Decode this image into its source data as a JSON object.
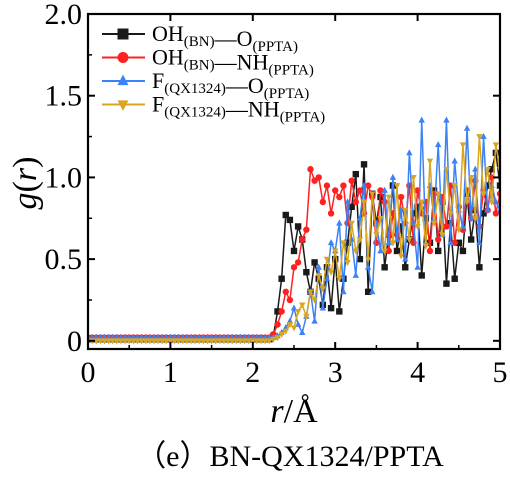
{
  "chart_data": {
    "type": "line",
    "title": "",
    "caption": "（e）BN-QX1324/PPTA",
    "xlabel": {
      "r": "r",
      "slash": "/",
      "unit": "Å"
    },
    "ylabel": {
      "g": "g",
      "open": "(",
      "r": "r",
      "close": ")"
    },
    "xlim": [
      0,
      5
    ],
    "ylim": [
      -0.05,
      2.0
    ],
    "x_ticks": [
      0,
      1,
      2,
      3,
      4,
      5
    ],
    "x_tick_labels": [
      "0",
      "1",
      "2",
      "3",
      "4",
      "5"
    ],
    "y_ticks": [
      0,
      0.5,
      1.0,
      1.5,
      2.0
    ],
    "y_tick_labels": [
      "0",
      "0.5",
      "1.0",
      "1.5",
      "2.0"
    ],
    "grid": false,
    "legend_position": "top-left",
    "series": [
      {
        "legend": {
          "a": "OH",
          "a_sub": "(BN)",
          "b": "O",
          "b_sub": "(PPTA)"
        },
        "color": "#1a1a1a",
        "marker": "square",
        "x": [
          0,
          0.05,
          0.1,
          0.15,
          0.2,
          0.25,
          0.3,
          0.35,
          0.4,
          0.45,
          0.5,
          0.55,
          0.6,
          0.65,
          0.7,
          0.75,
          0.8,
          0.85,
          0.9,
          0.95,
          1,
          1.05,
          1.1,
          1.15,
          1.2,
          1.25,
          1.3,
          1.35,
          1.4,
          1.45,
          1.5,
          1.55,
          1.6,
          1.65,
          1.7,
          1.75,
          1.8,
          1.85,
          1.9,
          1.95,
          2,
          2.05,
          2.1,
          2.15,
          2.2,
          2.25,
          2.3,
          2.35,
          2.4,
          2.45,
          2.5,
          2.55,
          2.6,
          2.65,
          2.7,
          2.75,
          2.8,
          2.85,
          2.9,
          2.95,
          3,
          3.05,
          3.1,
          3.15,
          3.2,
          3.25,
          3.3,
          3.35,
          3.4,
          3.45,
          3.5,
          3.55,
          3.6,
          3.65,
          3.7,
          3.75,
          3.8,
          3.85,
          3.9,
          3.95,
          4,
          4.05,
          4.1,
          4.15,
          4.2,
          4.25,
          4.3,
          4.35,
          4.4,
          4.45,
          4.5,
          4.55,
          4.6,
          4.65,
          4.7,
          4.75,
          4.8,
          4.85,
          4.9,
          4.95,
          5
        ],
        "y": [
          0.01,
          0.01,
          0.01,
          0.01,
          0.01,
          0.01,
          0.01,
          0.01,
          0.01,
          0.01,
          0.01,
          0.01,
          0.01,
          0.01,
          0.01,
          0.01,
          0.01,
          0.01,
          0.01,
          0.01,
          0.01,
          0.01,
          0.01,
          0.01,
          0.01,
          0.01,
          0.01,
          0.01,
          0.01,
          0.01,
          0.01,
          0.01,
          0.01,
          0.01,
          0.01,
          0.01,
          0.01,
          0.01,
          0.01,
          0.01,
          0.01,
          0.01,
          0.01,
          0.01,
          0.01,
          0.03,
          0.18,
          0.38,
          0.77,
          0.74,
          0.55,
          0.7,
          0.62,
          0.42,
          0.3,
          0.48,
          0.38,
          0.22,
          0.45,
          0.2,
          0.5,
          0.18,
          0.38,
          0.6,
          0.82,
          1.02,
          0.5,
          1.08,
          0.3,
          0.9,
          0.72,
          0.88,
          0.45,
          0.65,
          0.95,
          0.55,
          0.7,
          0.45,
          0.62,
          0.78,
          0.82,
          0.4,
          0.75,
          0.6,
          0.92,
          0.55,
          0.85,
          0.35,
          0.72,
          0.38,
          0.6,
          0.55,
          0.9,
          0.62,
          0.8,
          0.45,
          0.78,
          0.95,
          1.05,
          1.15,
          0.95
        ]
      },
      {
        "legend": {
          "a": "OH",
          "a_sub": "(BN)",
          "b": "NH",
          "b_sub": "(PPTA)"
        },
        "color": "#ff2020",
        "marker": "circle",
        "x": [
          0,
          0.05,
          0.1,
          0.15,
          0.2,
          0.25,
          0.3,
          0.35,
          0.4,
          0.45,
          0.5,
          0.55,
          0.6,
          0.65,
          0.7,
          0.75,
          0.8,
          0.85,
          0.9,
          0.95,
          1,
          1.05,
          1.1,
          1.15,
          1.2,
          1.25,
          1.3,
          1.35,
          1.4,
          1.45,
          1.5,
          1.55,
          1.6,
          1.65,
          1.7,
          1.75,
          1.8,
          1.85,
          1.9,
          1.95,
          2,
          2.05,
          2.1,
          2.15,
          2.2,
          2.25,
          2.3,
          2.35,
          2.4,
          2.45,
          2.5,
          2.55,
          2.6,
          2.65,
          2.7,
          2.75,
          2.8,
          2.85,
          2.9,
          2.95,
          3,
          3.05,
          3.1,
          3.15,
          3.2,
          3.25,
          3.3,
          3.35,
          3.4,
          3.45,
          3.5,
          3.55,
          3.6,
          3.65,
          3.7,
          3.75,
          3.8,
          3.85,
          3.9,
          3.95,
          4,
          4.05,
          4.1,
          4.15,
          4.2,
          4.25,
          4.3,
          4.35,
          4.4,
          4.45,
          4.5,
          4.55,
          4.6,
          4.65,
          4.7,
          4.75,
          4.8,
          4.85,
          4.9,
          4.95,
          5
        ],
        "y": [
          0.02,
          0.02,
          0.02,
          0.02,
          0.02,
          0.02,
          0.02,
          0.02,
          0.02,
          0.02,
          0.02,
          0.02,
          0.02,
          0.02,
          0.02,
          0.02,
          0.02,
          0.02,
          0.02,
          0.02,
          0.02,
          0.02,
          0.02,
          0.02,
          0.02,
          0.02,
          0.02,
          0.02,
          0.02,
          0.02,
          0.02,
          0.02,
          0.02,
          0.02,
          0.02,
          0.02,
          0.02,
          0.02,
          0.02,
          0.02,
          0.02,
          0.02,
          0.02,
          0.02,
          0.02,
          0.04,
          0.1,
          0.18,
          0.3,
          0.25,
          0.45,
          0.48,
          0.62,
          0.68,
          1.05,
          0.98,
          1.0,
          0.85,
          0.95,
          0.78,
          0.92,
          0.88,
          0.95,
          0.72,
          0.98,
          0.85,
          0.92,
          0.78,
          0.95,
          0.88,
          0.6,
          0.92,
          0.85,
          0.55,
          0.78,
          0.65,
          0.88,
          0.72,
          0.95,
          0.6,
          0.92,
          0.78,
          0.85,
          0.55,
          0.9,
          0.62,
          0.88,
          0.7,
          0.95,
          0.6,
          0.82,
          0.68,
          0.92,
          0.75,
          0.98,
          0.7,
          0.92,
          0.8,
          1.0,
          0.78,
          0.9
        ]
      },
      {
        "legend": {
          "a": "F",
          "a_sub": "(QX1324)",
          "b": "O",
          "b_sub": "(PPTA)"
        },
        "color": "#3b82f6",
        "marker": "triangle-up",
        "x": [
          0,
          0.05,
          0.1,
          0.15,
          0.2,
          0.25,
          0.3,
          0.35,
          0.4,
          0.45,
          0.5,
          0.55,
          0.6,
          0.65,
          0.7,
          0.75,
          0.8,
          0.85,
          0.9,
          0.95,
          1,
          1.05,
          1.1,
          1.15,
          1.2,
          1.25,
          1.3,
          1.35,
          1.4,
          1.45,
          1.5,
          1.55,
          1.6,
          1.65,
          1.7,
          1.75,
          1.8,
          1.85,
          1.9,
          1.95,
          2,
          2.05,
          2.1,
          2.15,
          2.2,
          2.25,
          2.3,
          2.35,
          2.4,
          2.45,
          2.5,
          2.55,
          2.6,
          2.65,
          2.7,
          2.75,
          2.8,
          2.85,
          2.9,
          2.95,
          3,
          3.05,
          3.1,
          3.15,
          3.2,
          3.25,
          3.3,
          3.35,
          3.4,
          3.45,
          3.5,
          3.55,
          3.6,
          3.65,
          3.7,
          3.75,
          3.8,
          3.85,
          3.9,
          3.95,
          4,
          4.05,
          4.1,
          4.15,
          4.2,
          4.25,
          4.3,
          4.35,
          4.4,
          4.45,
          4.5,
          4.55,
          4.6,
          4.65,
          4.7,
          4.75,
          4.8,
          4.85,
          4.9,
          4.95,
          5
        ],
        "y": [
          0.02,
          0.02,
          0.02,
          0.02,
          0.02,
          0.02,
          0.02,
          0.02,
          0.02,
          0.02,
          0.02,
          0.02,
          0.02,
          0.02,
          0.02,
          0.02,
          0.02,
          0.02,
          0.02,
          0.02,
          0.02,
          0.02,
          0.02,
          0.02,
          0.02,
          0.02,
          0.02,
          0.02,
          0.02,
          0.02,
          0.02,
          0.02,
          0.02,
          0.02,
          0.02,
          0.02,
          0.02,
          0.02,
          0.02,
          0.02,
          0.02,
          0.02,
          0.02,
          0.02,
          0.02,
          0.02,
          0.03,
          0.05,
          0.08,
          0.12,
          0.2,
          0.1,
          0.05,
          0.15,
          0.3,
          0.12,
          0.45,
          0.2,
          0.38,
          0.6,
          0.55,
          0.72,
          0.3,
          0.85,
          0.62,
          0.4,
          0.75,
          0.95,
          0.45,
          0.3,
          0.72,
          0.55,
          0.92,
          0.6,
          1.0,
          0.62,
          0.8,
          0.5,
          1.15,
          0.72,
          0.45,
          1.35,
          0.6,
          0.95,
          0.75,
          1.2,
          0.65,
          1.35,
          0.6,
          1.1,
          0.8,
          0.7,
          1.3,
          0.75,
          1.05,
          0.6,
          1.25,
          0.8,
          0.95,
          0.85,
          0.8
        ]
      },
      {
        "legend": {
          "a": "F",
          "a_sub": "(QX1324)",
          "b": "NH",
          "b_sub": "(PPTA)"
        },
        "color": "#daa520",
        "marker": "triangle-down",
        "x": [
          0,
          0.05,
          0.1,
          0.15,
          0.2,
          0.25,
          0.3,
          0.35,
          0.4,
          0.45,
          0.5,
          0.55,
          0.6,
          0.65,
          0.7,
          0.75,
          0.8,
          0.85,
          0.9,
          0.95,
          1,
          1.05,
          1.1,
          1.15,
          1.2,
          1.25,
          1.3,
          1.35,
          1.4,
          1.45,
          1.5,
          1.55,
          1.6,
          1.65,
          1.7,
          1.75,
          1.8,
          1.85,
          1.9,
          1.95,
          2,
          2.05,
          2.1,
          2.15,
          2.2,
          2.25,
          2.3,
          2.35,
          2.4,
          2.45,
          2.5,
          2.55,
          2.6,
          2.65,
          2.7,
          2.75,
          2.8,
          2.85,
          2.9,
          2.95,
          3,
          3.05,
          3.1,
          3.15,
          3.2,
          3.25,
          3.3,
          3.35,
          3.4,
          3.45,
          3.5,
          3.55,
          3.6,
          3.65,
          3.7,
          3.75,
          3.8,
          3.85,
          3.9,
          3.95,
          4,
          4.05,
          4.1,
          4.15,
          4.2,
          4.25,
          4.3,
          4.35,
          4.4,
          4.45,
          4.5,
          4.55,
          4.6,
          4.65,
          4.7,
          4.75,
          4.8,
          4.85,
          4.9,
          4.95,
          5
        ],
        "y": [
          0.0,
          0.0,
          0.0,
          0.0,
          0.0,
          0.0,
          0.0,
          0.0,
          0.0,
          0.0,
          0.0,
          0.0,
          0.0,
          0.0,
          0.0,
          0.0,
          0.0,
          0.0,
          0.0,
          0.0,
          0.0,
          0.0,
          0.0,
          0.0,
          0.0,
          0.0,
          0.0,
          0.0,
          0.0,
          0.0,
          0.0,
          0.0,
          0.0,
          0.0,
          0.0,
          0.0,
          0.0,
          0.0,
          0.0,
          0.0,
          0.0,
          0.0,
          0.0,
          0.0,
          0.0,
          0.01,
          0.02,
          0.04,
          0.06,
          0.1,
          0.08,
          0.18,
          0.22,
          0.15,
          0.3,
          0.25,
          0.4,
          0.32,
          0.5,
          0.42,
          0.55,
          0.38,
          0.6,
          0.48,
          0.72,
          0.55,
          0.62,
          0.85,
          0.5,
          0.9,
          0.65,
          0.75,
          0.55,
          0.88,
          0.6,
          0.95,
          0.52,
          0.8,
          0.62,
          1.0,
          0.7,
          0.85,
          0.58,
          1.1,
          0.72,
          0.9,
          0.65,
          1.05,
          0.78,
          0.95,
          0.68,
          1.2,
          0.85,
          1.0,
          0.75,
          1.25,
          0.9,
          1.05,
          0.85,
          1.2,
          1.05
        ]
      }
    ]
  }
}
